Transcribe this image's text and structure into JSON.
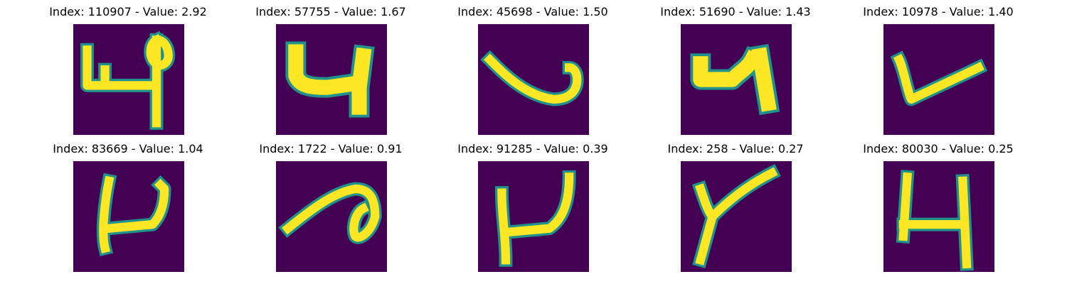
{
  "colors": {
    "background": "#440154",
    "stroke_edge": "#21918c",
    "stroke_core": "#fde725"
  },
  "panels": [
    {
      "title": "Index: 110907 - Value: 2.92",
      "glyph": "digit-4-loop"
    },
    {
      "title": "Index: 57755 - Value: 1.67",
      "glyph": "digit-4-bold"
    },
    {
      "title": "Index: 45698 - Value: 1.50",
      "glyph": "curved-stroke"
    },
    {
      "title": "Index: 51690 - Value: 1.43",
      "glyph": "digit-4-blob"
    },
    {
      "title": "Index: 10978 - Value: 1.40",
      "glyph": "v-stroke"
    },
    {
      "title": "Index: 83669 - Value: 1.04",
      "glyph": "digit-4-open"
    },
    {
      "title": "Index: 1722 - Value: 0.91",
      "glyph": "loop-stroke"
    },
    {
      "title": "Index: 91285 - Value: 0.39",
      "glyph": "digit-4-open"
    },
    {
      "title": "Index: 258 - Value: 0.27",
      "glyph": "y-stroke"
    },
    {
      "title": "Index: 80030 - Value: 0.25",
      "glyph": "digit-4-h"
    }
  ]
}
